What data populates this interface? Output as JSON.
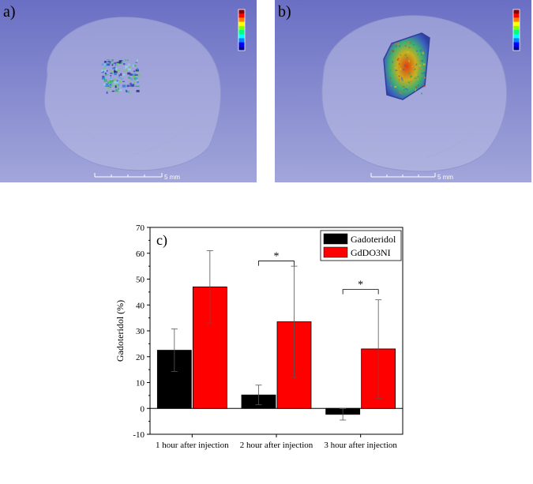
{
  "panels": [
    {
      "label": "a)",
      "scale_label": "5 mm",
      "fill": "sparse"
    },
    {
      "label": "b)",
      "scale_label": "5 mm",
      "fill": "dense"
    }
  ],
  "colors": {
    "viewport_top": "#6a6fc4",
    "viewport_bottom": "#a2a6da",
    "ghost_fill": "#b9bde3",
    "gadoteridol": "#000000",
    "gddo3ni": "#ff0000"
  },
  "colorbar_stops": [
    "#8b0000",
    "#ff0000",
    "#ff7f00",
    "#ffff00",
    "#7fff00",
    "#00ff7f",
    "#00ffff",
    "#007fff",
    "#0000ff",
    "#00008b"
  ],
  "chart_data": {
    "type": "bar",
    "panel_label": "c)",
    "categories": [
      "1 hour after injection",
      "2 hour after injection",
      "3 hour after injection"
    ],
    "series": [
      {
        "name": "Gadoteridol",
        "values": [
          22.5,
          5.2,
          -2.3
        ],
        "errors": [
          8.2,
          3.8,
          2.2
        ],
        "color": "#000000"
      },
      {
        "name": "GdDO3NI",
        "values": [
          47.0,
          33.5,
          23.0
        ],
        "errors": [
          14.0,
          21.5,
          19.0
        ],
        "color": "#ff0000"
      }
    ],
    "ylabel": "Gadoteridol (%)",
    "ylim": [
      -10,
      70
    ],
    "yticks": [
      -10,
      0,
      10,
      20,
      30,
      40,
      50,
      60,
      70
    ],
    "significance": [
      {
        "category_index": 1,
        "label": "*",
        "top": 57
      },
      {
        "category_index": 2,
        "label": "*",
        "top": 46
      }
    ],
    "legend_position": "top-right"
  }
}
